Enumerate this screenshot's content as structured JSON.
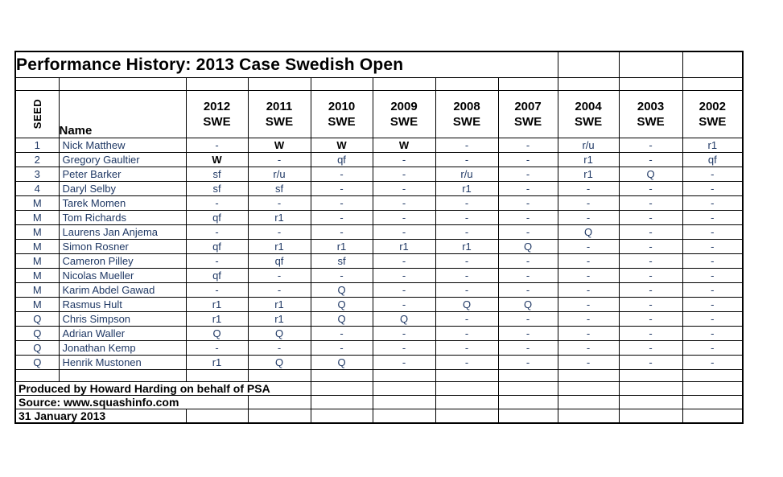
{
  "title": "Performance History:  2013 Case Swedish Open",
  "columns": {
    "seed_label": "SEED",
    "name_label": "Name",
    "years": [
      {
        "year": "2012",
        "code": "SWE"
      },
      {
        "year": "2011",
        "code": "SWE"
      },
      {
        "year": "2010",
        "code": "SWE"
      },
      {
        "year": "2009",
        "code": "SWE"
      },
      {
        "year": "2008",
        "code": "SWE"
      },
      {
        "year": "2007",
        "code": "SWE"
      },
      {
        "year": "2004",
        "code": "SWE"
      },
      {
        "year": "2003",
        "code": "SWE"
      },
      {
        "year": "2002",
        "code": "SWE"
      }
    ]
  },
  "players": [
    {
      "seed": "1",
      "name": "Nick Matthew",
      "results": [
        "-",
        "W",
        "W",
        "W",
        "-",
        "-",
        "r/u",
        "-",
        "r1"
      ]
    },
    {
      "seed": "2",
      "name": "Gregory Gaultier",
      "results": [
        "W",
        "-",
        "qf",
        "-",
        "-",
        "-",
        "r1",
        "-",
        "qf"
      ]
    },
    {
      "seed": "3",
      "name": "Peter Barker",
      "results": [
        "sf",
        "r/u",
        "-",
        "-",
        "r/u",
        "-",
        "r1",
        "Q",
        "-"
      ]
    },
    {
      "seed": "4",
      "name": "Daryl Selby",
      "results": [
        "sf",
        "sf",
        "-",
        "-",
        "r1",
        "-",
        "-",
        "-",
        "-"
      ]
    },
    {
      "seed": "M",
      "name": "Tarek Momen",
      "results": [
        "-",
        "-",
        "-",
        "-",
        "-",
        "-",
        "-",
        "-",
        "-"
      ]
    },
    {
      "seed": "M",
      "name": "Tom Richards",
      "results": [
        "qf",
        "r1",
        "-",
        "-",
        "-",
        "-",
        "-",
        "-",
        "-"
      ]
    },
    {
      "seed": "M",
      "name": "Laurens Jan Anjema",
      "results": [
        "-",
        "-",
        "-",
        "-",
        "-",
        "-",
        "Q",
        "-",
        "-"
      ]
    },
    {
      "seed": "M",
      "name": "Simon Rosner",
      "results": [
        "qf",
        "r1",
        "r1",
        "r1",
        "r1",
        "Q",
        "-",
        "-",
        "-"
      ]
    },
    {
      "seed": "M",
      "name": "Cameron Pilley",
      "results": [
        "-",
        "qf",
        "sf",
        "-",
        "-",
        "-",
        "-",
        "-",
        "-"
      ]
    },
    {
      "seed": "M",
      "name": "Nicolas Mueller",
      "results": [
        "qf",
        "-",
        "-",
        "-",
        "-",
        "-",
        "-",
        "-",
        "-"
      ]
    },
    {
      "seed": "M",
      "name": "Karim Abdel Gawad",
      "results": [
        "-",
        "-",
        "Q",
        "-",
        "-",
        "-",
        "-",
        "-",
        "-"
      ]
    },
    {
      "seed": "M",
      "name": "Rasmus Hult",
      "results": [
        "r1",
        "r1",
        "Q",
        "-",
        "Q",
        "Q",
        "-",
        "-",
        "-"
      ]
    },
    {
      "seed": "Q",
      "name": "Chris Simpson",
      "results": [
        "r1",
        "r1",
        "Q",
        "Q",
        "-",
        "-",
        "-",
        "-",
        "-"
      ]
    },
    {
      "seed": "Q",
      "name": "Adrian Waller",
      "results": [
        "Q",
        "Q",
        "-",
        "-",
        "-",
        "-",
        "-",
        "-",
        "-"
      ]
    },
    {
      "seed": "Q",
      "name": "Jonathan Kemp",
      "results": [
        "-",
        "-",
        "-",
        "-",
        "-",
        "-",
        "-",
        "-",
        "-"
      ]
    },
    {
      "seed": "Q",
      "name": "Henrik Mustonen",
      "results": [
        "r1",
        "Q",
        "Q",
        "-",
        "-",
        "-",
        "-",
        "-",
        "-"
      ]
    }
  ],
  "footer": {
    "produced_by": "Produced by Howard Harding on behalf of PSA",
    "source": "Source: www.squashinfo.com",
    "date": "31 January 2013"
  },
  "colors": {
    "heading_text": "#000000",
    "data_text": "#1f3864",
    "win_text": "#000000",
    "grid_line": "#000000",
    "background": "#ffffff"
  }
}
